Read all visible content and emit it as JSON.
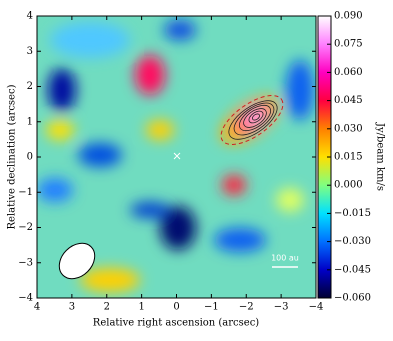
{
  "chart_data": {
    "type": "heatmap",
    "x_label": "Relative right ascension (arcsec)",
    "y_label": "Relative declination (arcsec)",
    "xlim": [
      4,
      -4
    ],
    "xticks": [
      4,
      3,
      2,
      1,
      0,
      {
        "value": -1,
        "label": "−1"
      },
      {
        "value": -2,
        "label": "−2"
      },
      {
        "value": -3,
        "label": "−3"
      },
      {
        "value": -4,
        "label": "−4"
      }
    ],
    "ylim": [
      -4,
      4
    ],
    "yticks": [
      {
        "value": -4,
        "label": "−4"
      },
      {
        "value": -3,
        "label": "−3"
      },
      {
        "value": -2,
        "label": "−2"
      },
      {
        "value": -1,
        "label": "−1"
      },
      0,
      1,
      2,
      3,
      4
    ],
    "colorbar": {
      "label": "Jy/beam km/s",
      "lim": [
        -0.06,
        0.09
      ],
      "ticks": [
        {
          "value": -0.06,
          "label": "−0.060"
        },
        {
          "value": -0.045,
          "label": "−0.045"
        },
        {
          "value": -0.03,
          "label": "−0.030"
        },
        {
          "value": -0.015,
          "label": "−0.015"
        },
        {
          "value": 0,
          "label": "0.000"
        },
        {
          "value": 0.015,
          "label": "0.015"
        },
        {
          "value": 0.03,
          "label": "0.030"
        },
        {
          "value": 0.045,
          "label": "0.045"
        },
        {
          "value": 0.06,
          "label": "0.060"
        },
        {
          "value": 0.075,
          "label": "0.075"
        },
        {
          "value": 0.09,
          "label": "0.090"
        }
      ],
      "colors": [
        "#000033",
        "#0000c8",
        "#0070ff",
        "#00e0ff",
        "#80ff80",
        "#ffe000",
        "#ff8000",
        "#ff0040",
        "#ff00c0",
        "#ff80ff",
        "#ffffff"
      ]
    },
    "scale_bar_label": "100 au"
  }
}
